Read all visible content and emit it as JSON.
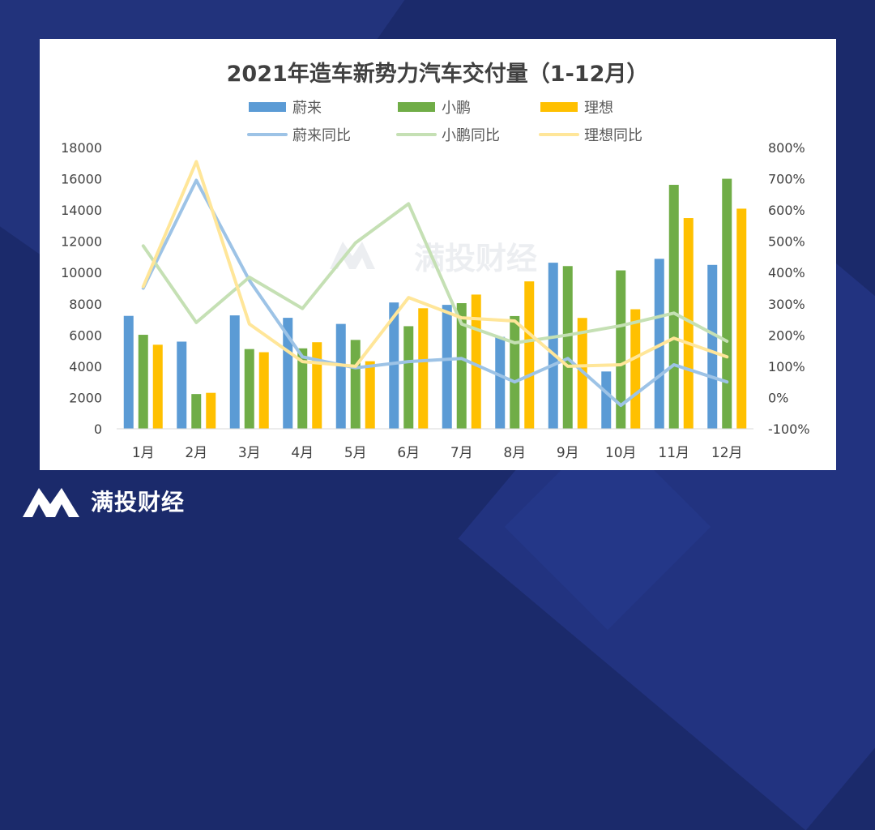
{
  "brand": {
    "name": "满投财经",
    "logo_icon": "m-logo-icon"
  },
  "watermark": {
    "text": "满投财经"
  },
  "chart_data": {
    "type": "bar",
    "title": "2021年造车新势力汽车交付量（1-12月）",
    "categories": [
      "1月",
      "2月",
      "3月",
      "4月",
      "5月",
      "6月",
      "7月",
      "8月",
      "9月",
      "10月",
      "11月",
      "12月"
    ],
    "y_left": {
      "range": [
        0,
        18000
      ],
      "ticks": [
        "0",
        "2000",
        "4000",
        "6000",
        "8000",
        "10000",
        "12000",
        "14000",
        "16000",
        "18000"
      ]
    },
    "y_right": {
      "range": [
        -100,
        800
      ],
      "unit": "%",
      "ticks": [
        "-100%",
        "0%",
        "100%",
        "200%",
        "300%",
        "400%",
        "500%",
        "600%",
        "700%",
        "800%"
      ]
    },
    "grid": false,
    "legend_position": "top",
    "series": [
      {
        "name": "蔚来",
        "kind": "bar",
        "axis": "left",
        "color": "#5b9bd5",
        "values": [
          7225,
          5578,
          7257,
          7102,
          6711,
          8083,
          7931,
          5880,
          10628,
          3667,
          10878,
          10489
        ]
      },
      {
        "name": "小鹏",
        "kind": "bar",
        "axis": "left",
        "color": "#70ad47",
        "values": [
          6015,
          2223,
          5102,
          5147,
          5686,
          6565,
          8040,
          7214,
          10412,
          10138,
          15613,
          16000
        ]
      },
      {
        "name": "理想",
        "kind": "bar",
        "axis": "left",
        "color": "#ffc000",
        "values": [
          5379,
          2300,
          4900,
          5539,
          4323,
          7713,
          8589,
          9433,
          7094,
          7649,
          13485,
          14087
        ]
      },
      {
        "name": "蔚来同比",
        "kind": "line",
        "axis": "right",
        "color": "#9dc3e6",
        "values": [
          350,
          695,
          375,
          130,
          95,
          115,
          125,
          50,
          125,
          -25,
          105,
          50
        ]
      },
      {
        "name": "小鹏同比",
        "kind": "line",
        "axis": "right",
        "color": "#c5e0b4",
        "values": [
          485,
          240,
          385,
          285,
          495,
          620,
          235,
          175,
          200,
          230,
          270,
          180
        ]
      },
      {
        "name": "理想同比",
        "kind": "line",
        "axis": "right",
        "color": "#ffe699",
        "values": [
          355,
          755,
          235,
          115,
          100,
          320,
          255,
          245,
          100,
          105,
          190,
          130
        ]
      }
    ]
  }
}
